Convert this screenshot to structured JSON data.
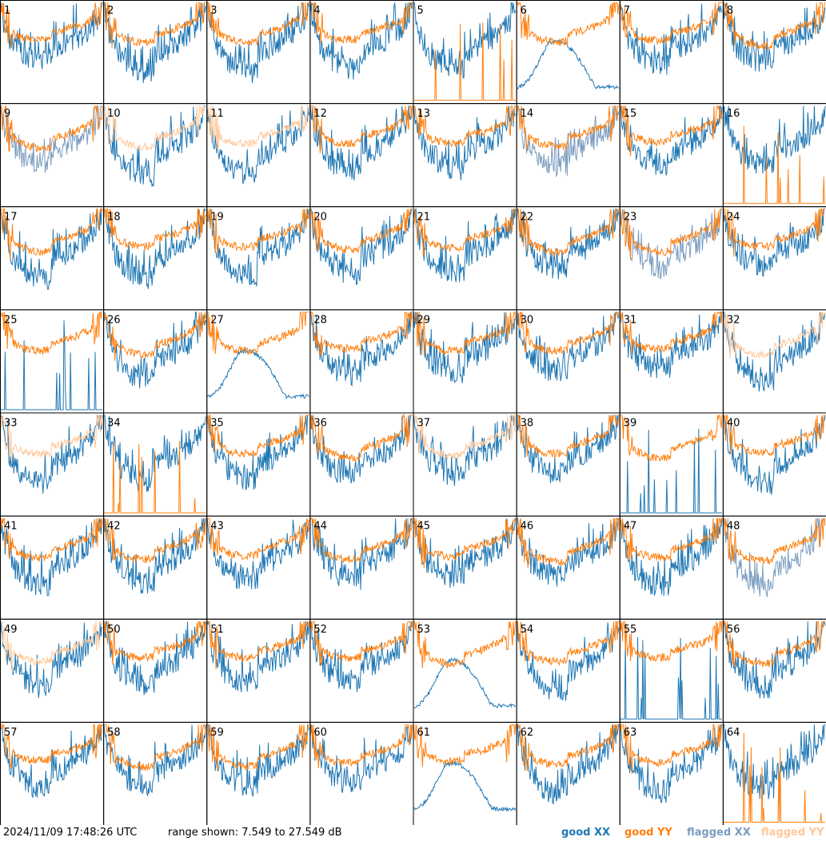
{
  "chart_data": {
    "type": "line",
    "panel_count": 64,
    "columns": 8,
    "rows": 8,
    "panel_labels": [
      "1",
      "2",
      "3",
      "4",
      "5",
      "6",
      "7",
      "8",
      "9",
      "10",
      "11",
      "12",
      "13",
      "14",
      "15",
      "16",
      "17",
      "18",
      "19",
      "20",
      "21",
      "22",
      "23",
      "24",
      "25",
      "26",
      "27",
      "28",
      "29",
      "30",
      "31",
      "32",
      "33",
      "34",
      "35",
      "36",
      "37",
      "38",
      "39",
      "40",
      "41",
      "42",
      "43",
      "44",
      "45",
      "46",
      "47",
      "48",
      "49",
      "50",
      "51",
      "52",
      "53",
      "54",
      "55",
      "56",
      "57",
      "58",
      "59",
      "60",
      "61",
      "62",
      "63",
      "64"
    ],
    "range_db": [
      7.549,
      27.549
    ],
    "x_tick_labels": [],
    "y_tick_labels": [],
    "legend": [
      {
        "name": "good XX",
        "color": "#1f77b4"
      },
      {
        "name": "good YY",
        "color": "#ff7f0e"
      },
      {
        "name": "flagged XX",
        "color": "#7a9cc0"
      },
      {
        "name": "flagged YY",
        "color": "#ffc89b"
      }
    ],
    "flagged_xx_panels": [
      9,
      14,
      23,
      48
    ],
    "flagged_yy_panels": [
      10,
      11,
      32,
      33,
      37,
      49
    ],
    "special_panels": {
      "5": "yy-spikes",
      "16": "yy-spikes",
      "25": "xx-spikes",
      "34": "yy-spikes",
      "39": "xx-spikes",
      "55": "xx-spikes",
      "64": "yy-spikes",
      "6": "xx-dip",
      "27": "xx-dip",
      "53": "xx-dip",
      "61": "xx-dip"
    }
  },
  "footer": {
    "timestamp": "2024/11/09 17:48:26 UTC",
    "range_text": "range shown: 7.549 to 27.549 dB",
    "legend_good_xx": "good XX",
    "legend_good_yy": "good YY",
    "legend_flagged_xx": "flagged XX",
    "legend_flagged_yy": "flagged YY"
  },
  "colors": {
    "good_xx": "#1f77b4",
    "good_yy": "#ff7f0e",
    "flagged_xx": "#7a9cc0",
    "flagged_yy": "#ffc89b",
    "grid_border": "#000000"
  }
}
